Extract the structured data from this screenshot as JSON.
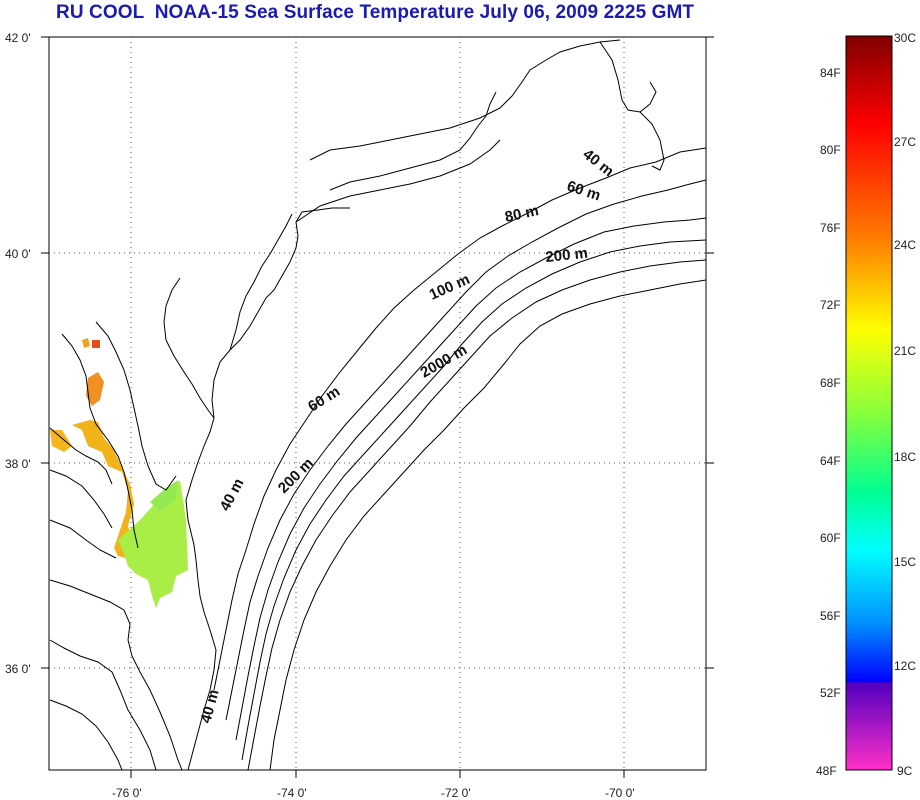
{
  "title": "RU COOL  NOAA-15 Sea Surface Temperature July 06, 2009 2225 GMT",
  "map": {
    "lat_ticks": [
      "42 0'",
      "40 0'",
      "38 0'",
      "36 0'"
    ],
    "lon_ticks": [
      "-76 0'",
      "-74 0'",
      "-72 0'",
      "-70 0'"
    ],
    "isobaths": [
      {
        "text": "40 m"
      },
      {
        "text": "60 m"
      },
      {
        "text": "80 m"
      },
      {
        "text": "200 m"
      },
      {
        "text": "100 m"
      },
      {
        "text": "2000 m"
      },
      {
        "text": "60 m"
      },
      {
        "text": "200 m"
      },
      {
        "text": "40 m"
      },
      {
        "text": "40 m"
      }
    ],
    "grid": "dotted"
  },
  "colorbar": {
    "fahrenheit": [
      "84F",
      "80F",
      "76F",
      "72F",
      "68F",
      "64F",
      "60F",
      "56F",
      "52F",
      "48F"
    ],
    "celsius": [
      "30C",
      "27C",
      "24C",
      "21C",
      "18C",
      "15C",
      "12C",
      "9C"
    ],
    "colors": [
      "#8b0000",
      "#ff0000",
      "#ff8000",
      "#ffff00",
      "#80ff40",
      "#00ffff",
      "#0080ff",
      "#0000ff",
      "#a020f0",
      "#ff40c0"
    ]
  }
}
